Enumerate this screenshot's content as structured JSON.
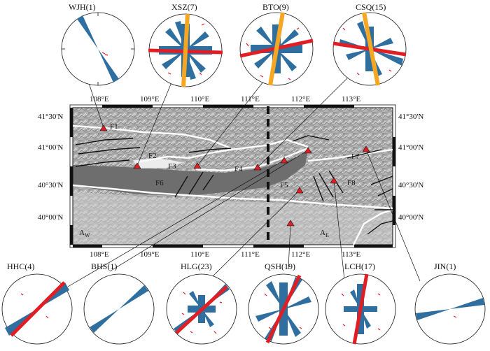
{
  "map": {
    "lon_ticks": [
      "108°E",
      "109°E",
      "110°E",
      "111°E",
      "112°E",
      "113°E"
    ],
    "lat_ticks_left": [
      "41°30'N",
      "41°00'N",
      "40°30'N",
      "40°00'N"
    ],
    "lat_ticks_right": [
      "41°30'N",
      "41°00'N",
      "40°30'N",
      "40°00'N"
    ],
    "fault_labels": [
      "F1",
      "F2",
      "F3",
      "F4",
      "F5",
      "F6",
      "F7",
      "F8"
    ],
    "block_labels": [
      {
        "main": "A",
        "sub": "W"
      },
      {
        "main": "A",
        "sub": "E"
      }
    ]
  },
  "stations_top": [
    {
      "name": "WJH(1)"
    },
    {
      "name": "XSZ(7)"
    },
    {
      "name": "BTO(9)"
    },
    {
      "name": "CSQ(15)"
    }
  ],
  "stations_bottom": [
    {
      "name": "HHC(4)"
    },
    {
      "name": "BHS(1)"
    },
    {
      "name": "HLG(23)"
    },
    {
      "name": "QSH(19)"
    },
    {
      "name": "LCH(17)"
    },
    {
      "name": "JIN(1)"
    }
  ],
  "colors": {
    "rose": "#2f6f9f",
    "max_stress": "#e01e24",
    "strike": "#f5a623",
    "station": "#e01e24",
    "fault_white": "#ffffff",
    "fault_black": "#111111"
  }
}
